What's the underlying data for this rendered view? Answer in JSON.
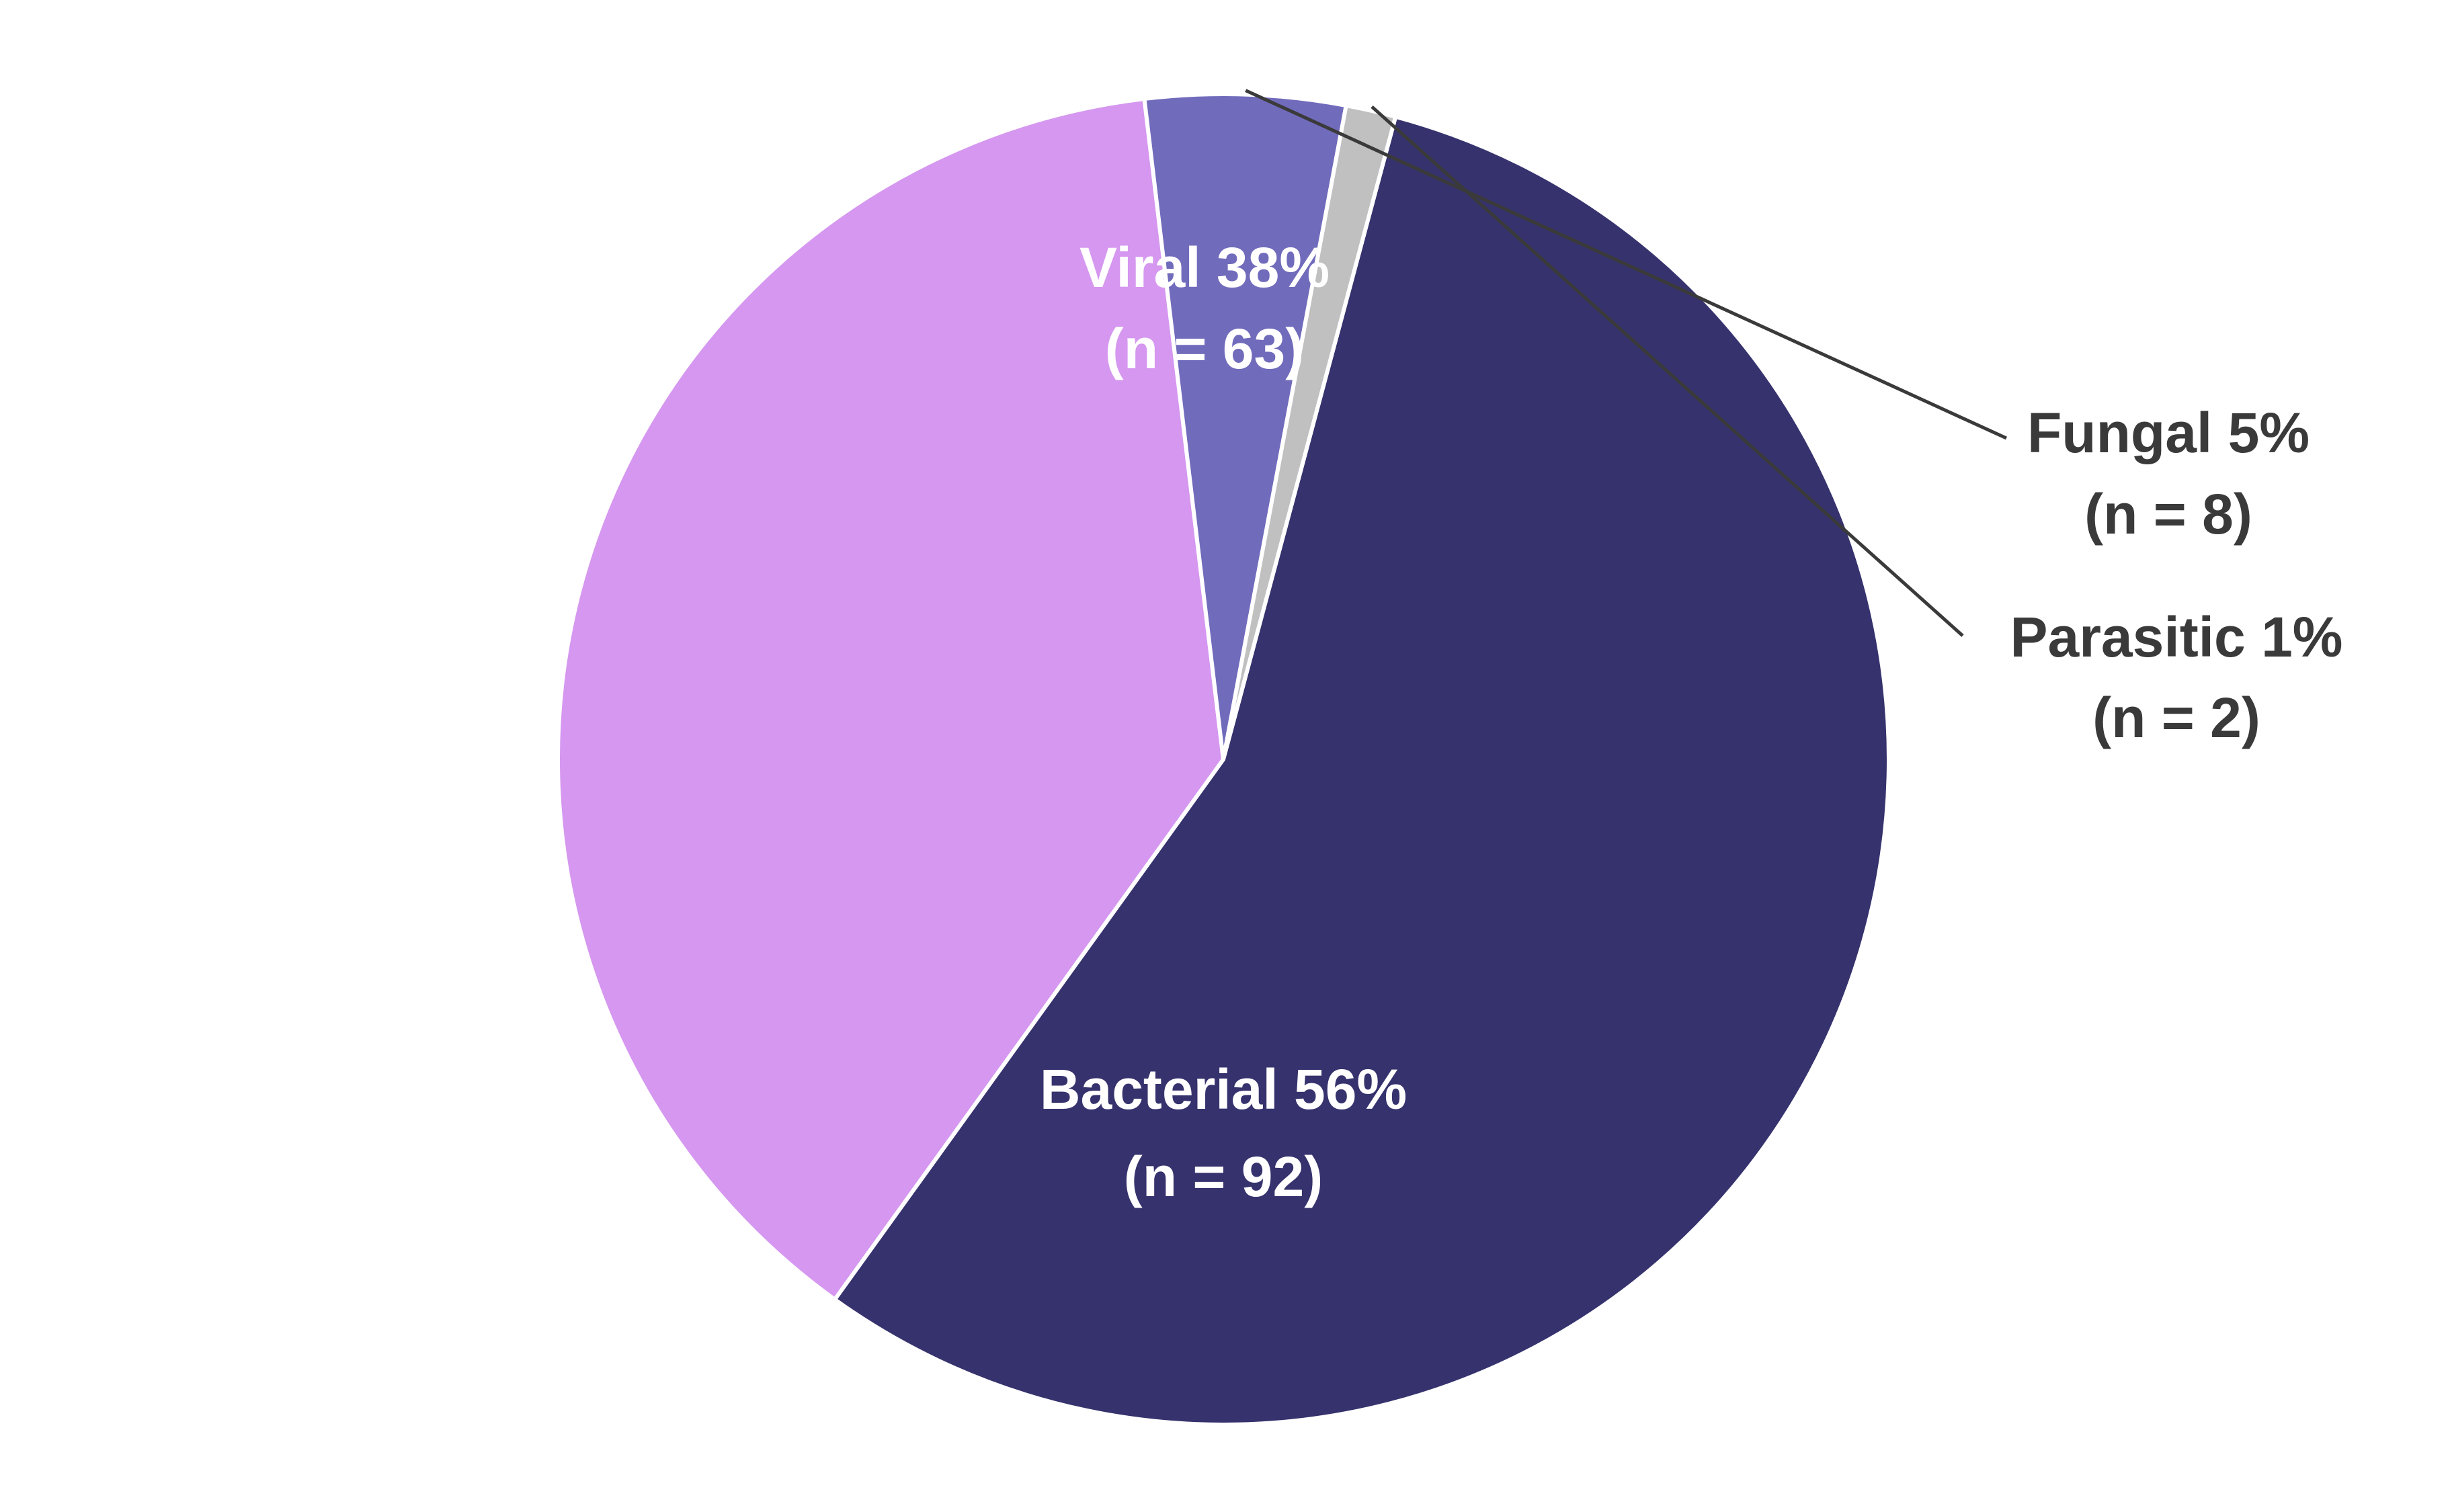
{
  "chart_data": {
    "type": "pie",
    "title": "",
    "slices": [
      {
        "key": "bacterial",
        "label": "Bacterial 56%",
        "count_label": "(n = 92)",
        "category": "Bacterial",
        "percent": 56,
        "n": 92,
        "color": "#35326d",
        "label_color": "#ffffff"
      },
      {
        "key": "viral",
        "label": "Viral 38%",
        "count_label": "(n = 63)",
        "category": "Viral",
        "percent": 38,
        "n": 63,
        "color": "#d597ef",
        "label_color": "#ffffff"
      },
      {
        "key": "fungal",
        "label": "Fungal 5%",
        "count_label": "(n = 8)",
        "category": "Fungal",
        "percent": 5,
        "n": 8,
        "color": "#716bbc",
        "label_color": "#3a3a3a"
      },
      {
        "key": "parasitic",
        "label": "Parasitic 1%",
        "count_label": "(n = 2)",
        "category": "Parasitic",
        "percent": 1,
        "n": 2,
        "color": "#c0c0c0",
        "label_color": "#3a3a3a"
      }
    ],
    "start_angle_deg": 15,
    "direction": "clockwise",
    "leader_color": "#3a3a3a",
    "slice_border_color": "#ffffff"
  }
}
